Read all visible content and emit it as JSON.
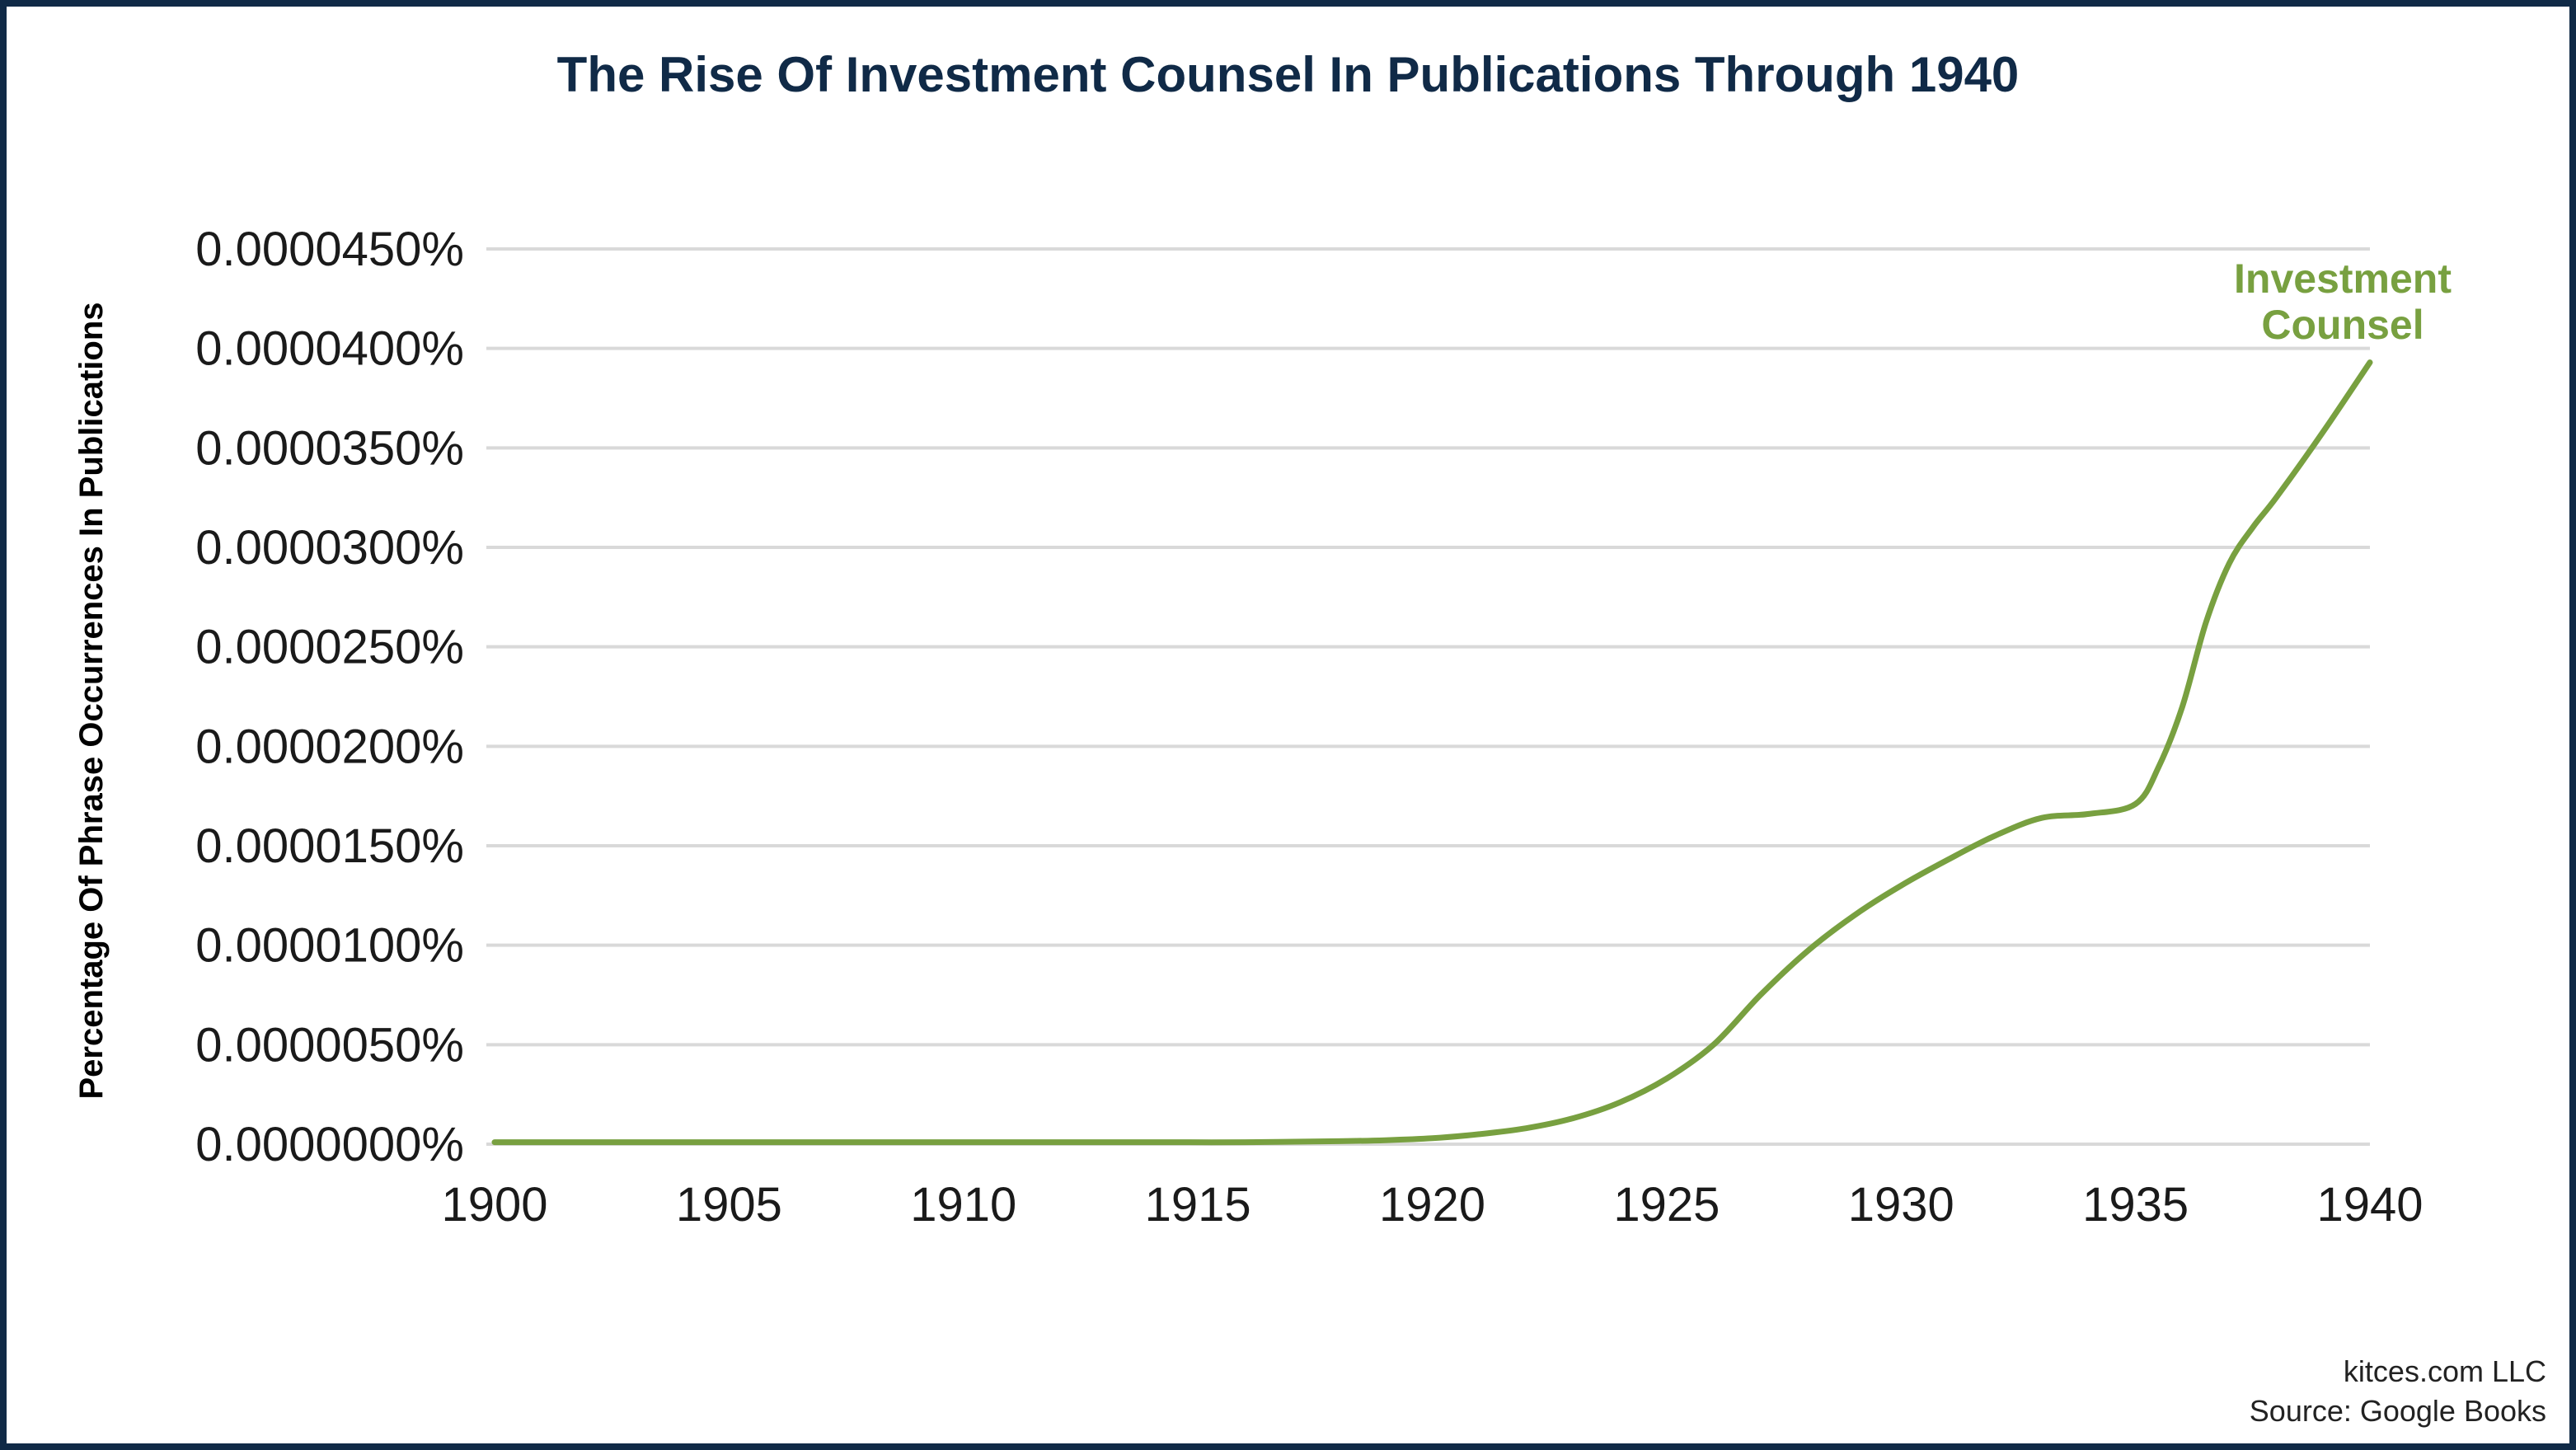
{
  "colors": {
    "frame": "#102a47",
    "title": "#102a47",
    "series": "#78a040",
    "grid": "#d9d9d9",
    "text": "#1a1a1a"
  },
  "chart_data": {
    "type": "line",
    "title": "The Rise Of Investment Counsel In Publications Through 1940",
    "xlabel": "",
    "ylabel": "Percentage Of Phrase Occurrences In Publications",
    "xlim": [
      1900,
      1940
    ],
    "ylim": [
      0,
      4.5e-05
    ],
    "x_ticks": [
      1900,
      1905,
      1910,
      1915,
      1920,
      1925,
      1930,
      1935,
      1940
    ],
    "y_ticks": [
      0,
      5e-06,
      1e-05,
      1.5e-05,
      2e-05,
      2.5e-05,
      3e-05,
      3.5e-05,
      4e-05,
      4.5e-05
    ],
    "y_tick_labels": [
      "0.0000000%",
      "0.0000050%",
      "0.0000100%",
      "0.0000150%",
      "0.0000200%",
      "0.0000250%",
      "0.0000300%",
      "0.0000350%",
      "0.0000400%",
      "0.0000450%"
    ],
    "grid": true,
    "legend": "none",
    "series": [
      {
        "name": "Investment Counsel",
        "label_lines": [
          "Investment",
          "Counsel"
        ],
        "x": [
          1900,
          1902,
          1904,
          1906,
          1908,
          1910,
          1912,
          1914,
          1916,
          1918,
          1919,
          1920,
          1921,
          1922,
          1923,
          1924,
          1925,
          1926,
          1927,
          1928,
          1929,
          1930,
          1931,
          1932,
          1933,
          1934,
          1935,
          1935.5,
          1936,
          1936.5,
          1937,
          1937.5,
          1938,
          1939,
          1940
        ],
        "values": [
          1e-07,
          1e-07,
          1e-07,
          1e-07,
          1e-07,
          1e-07,
          1e-07,
          1e-07,
          1e-07,
          1.5e-07,
          2e-07,
          3e-07,
          5e-07,
          8e-07,
          1.3e-06,
          2.1e-06,
          3.3e-06,
          5e-06,
          7.5e-06,
          9.7e-06,
          1.15e-05,
          1.3e-05,
          1.43e-05,
          1.55e-05,
          1.64e-05,
          1.66e-05,
          1.71e-05,
          1.9e-05,
          2.2e-05,
          2.62e-05,
          2.92e-05,
          3.1e-05,
          3.25e-05,
          3.58e-05,
          3.93e-05
        ]
      }
    ]
  },
  "footer": {
    "line1": "kitces.com LLC",
    "line2": "Source: Google Books"
  }
}
